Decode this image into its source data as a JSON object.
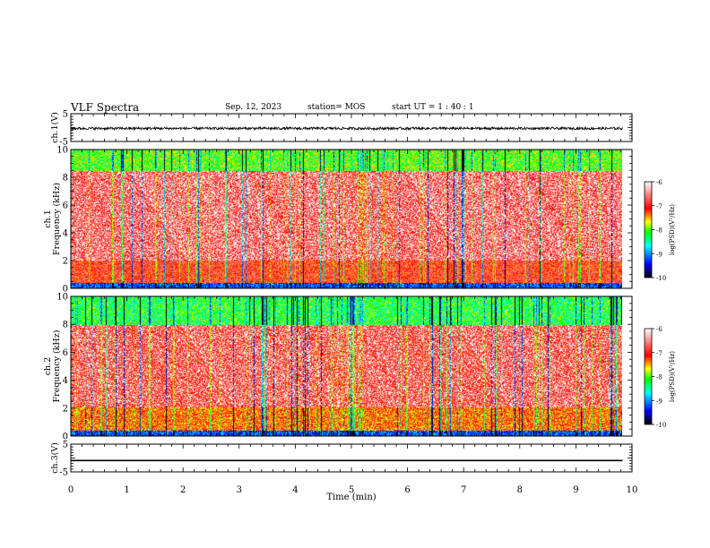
{
  "header": {
    "title": "VLF Spectra",
    "date": "Sep. 12, 2023",
    "station": "station= MOS",
    "start": "start  UT =   1 : 40 : 1"
  },
  "colors": {
    "spectrum_background": "#ffffff",
    "colorbar_stops": [
      "#000000",
      "#0000ff",
      "#00ffff",
      "#00ff00",
      "#ffff00",
      "#ff0000",
      "#ffffff"
    ]
  },
  "chart_data": [
    {
      "type": "line",
      "name": "ch1-waveform",
      "ylabel": "ch.1(V)",
      "ylim": [
        -5,
        5
      ],
      "yticks": [
        "5",
        "-5"
      ],
      "xlim": [
        0,
        10
      ],
      "mean_value": -0.3,
      "noise_amplitude": 0.45
    },
    {
      "type": "heatmap",
      "name": "ch1-spectrogram",
      "ylabel": "ch.1\nFrequency (kHz)",
      "ylim": [
        0,
        10
      ],
      "yticks": [
        "0",
        "2",
        "4",
        "6",
        "8",
        "10"
      ],
      "xlim": [
        0,
        10
      ],
      "colorbar": {
        "label": "log(PSD)(V²/Hz)",
        "ticks": [
          "-6",
          "-7",
          "-8",
          "-9",
          "-10"
        ],
        "range": [
          -10,
          -6
        ]
      },
      "band_features": [
        {
          "freq_range_khz": [
            8.5,
            10
          ],
          "level": -8.0
        },
        {
          "freq_range_khz": [
            0,
            2
          ],
          "level": -7.0
        },
        {
          "freq_range_khz": [
            2,
            8.5
          ],
          "level": -6.7
        }
      ]
    },
    {
      "type": "heatmap",
      "name": "ch2-spectrogram",
      "ylabel": "ch.2\nFrequency (kHz)",
      "ylim": [
        0,
        10
      ],
      "yticks": [
        "0",
        "2",
        "4",
        "6",
        "8",
        "10"
      ],
      "xlim": [
        0,
        10
      ],
      "colorbar": {
        "label": "log(PSD)(V²/Hz)",
        "ticks": [
          "-6",
          "-7",
          "-8",
          "-9",
          "-10"
        ],
        "range": [
          -10,
          -6
        ]
      },
      "band_features": [
        {
          "freq_range_khz": [
            8,
            10
          ],
          "level": -8.2
        },
        {
          "freq_range_khz": [
            0,
            2
          ],
          "level": -7.3
        },
        {
          "freq_range_khz": [
            2,
            8
          ],
          "level": -6.8
        }
      ]
    },
    {
      "type": "line",
      "name": "ch3-waveform",
      "ylabel": "ch.3(V)",
      "ylim": [
        -5,
        5
      ],
      "yticks": [
        "5",
        "-5"
      ],
      "xlim": [
        0,
        10
      ],
      "mean_value": -0.9,
      "noise_amplitude": 0.0
    }
  ],
  "xaxis": {
    "label": "Time (min)",
    "ticks": [
      "0",
      "1",
      "2",
      "3",
      "4",
      "5",
      "6",
      "7",
      "8",
      "9",
      "10"
    ],
    "data_end": 9.83
  }
}
